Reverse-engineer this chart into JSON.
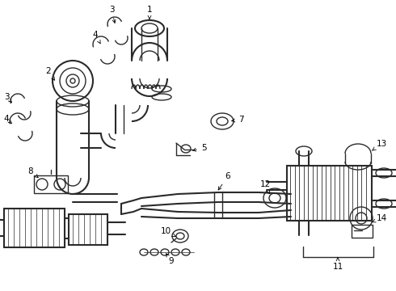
{
  "background_color": "#ffffff",
  "line_color": "#2a2a2a",
  "label_color": "#000000",
  "figsize": [
    4.9,
    3.6
  ],
  "dpi": 100,
  "xlim": [
    0,
    490
  ],
  "ylim": [
    0,
    360
  ],
  "components": {
    "label_fontsize": 7.5,
    "arrow_lw": 0.7
  }
}
